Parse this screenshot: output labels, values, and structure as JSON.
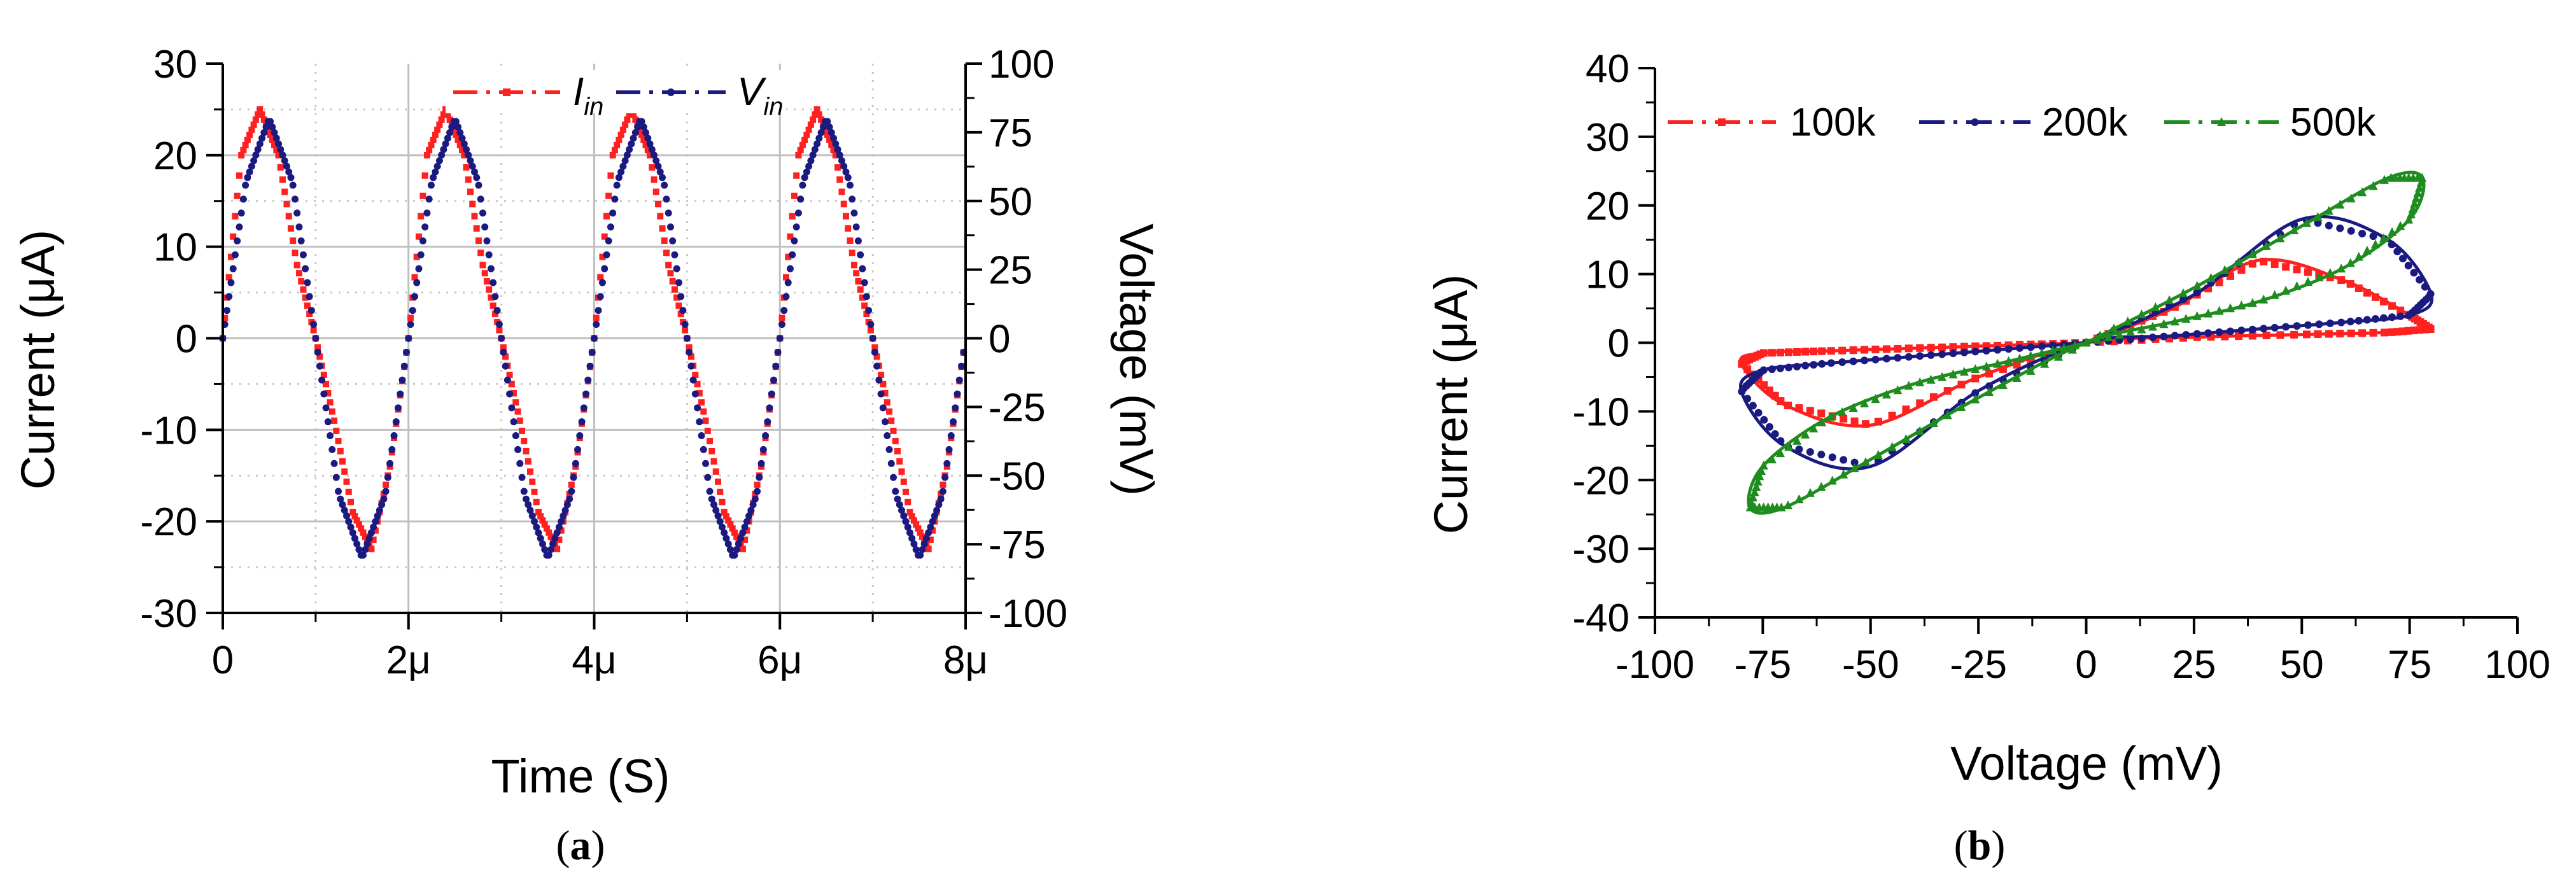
{
  "panel_a": {
    "caption_open": "(",
    "caption_letter": "a",
    "caption_close": ")",
    "xlabel": "Time (S)",
    "ylabel_left": "Current (μA)",
    "ylabel_right": "Voltage (mV)",
    "legend": [
      {
        "main": "I",
        "sub": "in",
        "color": "#ff2020"
      },
      {
        "main": "V",
        "sub": "in",
        "color": "#1a1a80"
      }
    ]
  },
  "panel_b": {
    "caption_open": "(",
    "caption_letter": "b",
    "caption_close": ")",
    "xlabel": "Voltage (mV)",
    "ylabel": "Current (μA)",
    "legend": [
      {
        "label": "100k",
        "color": "#ff2020"
      },
      {
        "label": "200k",
        "color": "#1a1a80"
      },
      {
        "label": "500k",
        "color": "#1e8c1e"
      }
    ]
  },
  "chart_data": [
    {
      "type": "line",
      "x_unit": "s",
      "x_ticks": [
        "0",
        "2μ",
        "4μ",
        "6μ",
        "8μ"
      ],
      "xlim": [
        0,
        8e-06
      ],
      "y_left_ticks": [
        "30",
        "20",
        "10",
        "0",
        "-10",
        "-20",
        "-30"
      ],
      "ylim_left": [
        -30,
        30
      ],
      "y_right_ticks": [
        "100",
        "75",
        "50",
        "25",
        "0",
        "-25",
        "-50",
        "-75",
        "-100"
      ],
      "ylim_right": [
        -100,
        100
      ],
      "grid": true,
      "legend_position": "top",
      "series": [
        {
          "name": "I_in",
          "axis": "left",
          "unit": "μA",
          "x": [
            0,
            2e-07,
            4e-07,
            6e-07,
            8e-07,
            1e-06,
            1.2e-06,
            1.4e-06,
            1.6e-06,
            1.8e-06,
            2e-06
          ],
          "y": [
            0,
            20,
            25,
            20,
            8,
            0,
            -9,
            -19,
            -23,
            -14,
            0
          ],
          "period_s": 2e-06,
          "repeats": 4
        },
        {
          "name": "V_in",
          "axis": "right",
          "unit": "mV",
          "x": [
            0,
            2.5e-07,
            5e-07,
            7.5e-07,
            1e-06,
            1.25e-06,
            1.5e-06,
            1.75e-06,
            2e-06
          ],
          "y": [
            0,
            57,
            80,
            57,
            0,
            -57,
            -80,
            -57,
            0
          ],
          "period_s": 2e-06,
          "repeats": 4
        }
      ]
    },
    {
      "type": "line",
      "xlabel": "Voltage (mV)",
      "ylabel": "Current (μA)",
      "x_ticks": [
        "-100",
        "-75",
        "-50",
        "-25",
        "0",
        "25",
        "50",
        "75",
        "100"
      ],
      "xlim": [
        -100,
        100
      ],
      "y_ticks": [
        "40",
        "30",
        "20",
        "10",
        "0",
        "-10",
        "-20",
        "-30",
        "-40"
      ],
      "ylim": [
        -40,
        40
      ],
      "grid": false,
      "legend_position": "top-left",
      "series": [
        {
          "name": "100k",
          "color": "#ff2020",
          "x": [
            0,
            20,
            40,
            60,
            75,
            80,
            70,
            50,
            25,
            0,
            -25,
            -50,
            -70,
            -80,
            -75,
            -60,
            -40,
            -20,
            0
          ],
          "y": [
            0,
            5,
            12,
            9,
            4,
            2,
            1.5,
            1.2,
            0.8,
            0,
            -5,
            -12,
            -9,
            -3,
            -1.5,
            -1.2,
            -0.8,
            -0.4,
            0
          ]
        },
        {
          "name": "200k",
          "color": "#1a1a80",
          "x": [
            0,
            25,
            50,
            70,
            80,
            75,
            60,
            40,
            20,
            0,
            -25,
            -50,
            -70,
            -80,
            -75,
            -60,
            -40,
            -20,
            0
          ],
          "y": [
            0,
            7,
            18,
            15,
            7,
            4,
            3,
            2,
            1,
            0,
            -7,
            -18,
            -15,
            -7,
            -4,
            -3,
            -2,
            -1,
            0
          ]
        },
        {
          "name": "500k",
          "color": "#1e8c1e",
          "x": [
            0,
            25,
            50,
            70,
            78,
            75,
            60,
            40,
            20,
            0,
            -25,
            -50,
            -70,
            -78,
            -75,
            -60,
            -40,
            -20,
            0
          ],
          "y": [
            0,
            8,
            17,
            24,
            24,
            18,
            11,
            6,
            3,
            0,
            -8,
            -17,
            -24,
            -24,
            -18,
            -11,
            -6,
            -3,
            0
          ]
        }
      ]
    }
  ]
}
